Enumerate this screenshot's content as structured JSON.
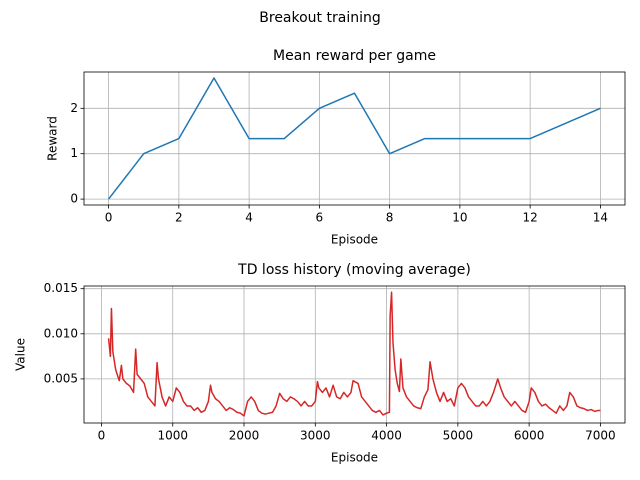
{
  "title": "Breakout training",
  "chart_data": [
    {
      "type": "line",
      "title": "Mean reward per game",
      "xlabel": "Episode",
      "ylabel": "Reward",
      "color": "#1f77b4",
      "grid": true,
      "x": [
        0,
        1,
        2,
        3,
        4,
        5,
        6,
        7,
        8,
        9,
        10,
        11,
        12,
        13,
        14
      ],
      "values": [
        0,
        1,
        1.333,
        2.667,
        1.333,
        1.333,
        2,
        2.333,
        1,
        1.333,
        1.333,
        1.333,
        1.333,
        1.667,
        2
      ],
      "xlim": [
        -0.7,
        14.7
      ],
      "xticks": [
        0,
        2,
        4,
        6,
        8,
        10,
        12,
        14
      ],
      "ylim": [
        -0.13,
        2.8
      ],
      "yticks": [
        0,
        1,
        2
      ]
    },
    {
      "type": "line",
      "title": "TD loss history (moving average)",
      "xlabel": "Episode",
      "ylabel": "Value",
      "color": "#d62728",
      "grid": true,
      "x": [
        100,
        125,
        140,
        160,
        200,
        250,
        280,
        300,
        350,
        400,
        450,
        480,
        500,
        550,
        600,
        650,
        700,
        750,
        780,
        800,
        850,
        900,
        950,
        1000,
        1050,
        1100,
        1150,
        1200,
        1250,
        1300,
        1350,
        1400,
        1450,
        1500,
        1530,
        1550,
        1600,
        1650,
        1700,
        1750,
        1800,
        1850,
        1900,
        1950,
        2000,
        2050,
        2100,
        2150,
        2200,
        2250,
        2300,
        2350,
        2400,
        2450,
        2500,
        2550,
        2600,
        2650,
        2700,
        2750,
        2800,
        2850,
        2900,
        2950,
        3000,
        3030,
        3050,
        3100,
        3150,
        3200,
        3250,
        3300,
        3350,
        3400,
        3450,
        3500,
        3530,
        3600,
        3650,
        3700,
        3750,
        3800,
        3850,
        3900,
        3950,
        4000,
        4040,
        4050,
        4070,
        4090,
        4120,
        4150,
        4180,
        4200,
        4230,
        4280,
        4330,
        4380,
        4430,
        4480,
        4530,
        4580,
        4610,
        4650,
        4700,
        4750,
        4800,
        4850,
        4900,
        4950,
        5000,
        5050,
        5100,
        5150,
        5200,
        5250,
        5300,
        5350,
        5400,
        5450,
        5500,
        5560,
        5600,
        5650,
        5700,
        5750,
        5800,
        5850,
        5900,
        5950,
        6000,
        6030,
        6080,
        6130,
        6180,
        6230,
        6280,
        6330,
        6380,
        6430,
        6480,
        6530,
        6570,
        6620,
        6670,
        6720,
        6770,
        6820,
        6870,
        6920,
        6970,
        7000
      ],
      "values": [
        0.0095,
        0.0075,
        0.0128,
        0.008,
        0.006,
        0.0048,
        0.0065,
        0.005,
        0.0045,
        0.0042,
        0.0035,
        0.0083,
        0.0055,
        0.005,
        0.0045,
        0.003,
        0.0025,
        0.002,
        0.0068,
        0.005,
        0.003,
        0.002,
        0.003,
        0.0025,
        0.004,
        0.0035,
        0.0025,
        0.002,
        0.002,
        0.0015,
        0.0018,
        0.0013,
        0.0015,
        0.0025,
        0.0043,
        0.0035,
        0.0028,
        0.0025,
        0.002,
        0.0015,
        0.0018,
        0.0016,
        0.0013,
        0.0012,
        0.0009,
        0.0025,
        0.003,
        0.0025,
        0.0015,
        0.0012,
        0.0011,
        0.0012,
        0.0013,
        0.002,
        0.0034,
        0.0028,
        0.0025,
        0.003,
        0.0028,
        0.0025,
        0.002,
        0.0025,
        0.002,
        0.002,
        0.0025,
        0.0047,
        0.004,
        0.0035,
        0.004,
        0.003,
        0.0043,
        0.003,
        0.0028,
        0.0035,
        0.003,
        0.0035,
        0.0048,
        0.0045,
        0.003,
        0.0025,
        0.002,
        0.0015,
        0.0013,
        0.0015,
        0.001,
        0.0012,
        0.0013,
        0.012,
        0.0146,
        0.009,
        0.006,
        0.0045,
        0.0036,
        0.0072,
        0.004,
        0.003,
        0.0025,
        0.002,
        0.0018,
        0.0017,
        0.003,
        0.0038,
        0.0069,
        0.005,
        0.0035,
        0.0025,
        0.0035,
        0.0025,
        0.0028,
        0.002,
        0.004,
        0.0045,
        0.004,
        0.003,
        0.0025,
        0.002,
        0.002,
        0.0025,
        0.002,
        0.0025,
        0.0035,
        0.005,
        0.004,
        0.003,
        0.0025,
        0.002,
        0.0025,
        0.002,
        0.0015,
        0.0013,
        0.0025,
        0.004,
        0.0035,
        0.0025,
        0.002,
        0.0022,
        0.0018,
        0.0015,
        0.0012,
        0.002,
        0.0015,
        0.002,
        0.0035,
        0.003,
        0.002,
        0.0018,
        0.0017,
        0.0015,
        0.0016,
        0.0014,
        0.0015,
        0.0015
      ],
      "xlim": [
        -245,
        7345
      ],
      "xticks": [
        0,
        1000,
        2000,
        3000,
        4000,
        5000,
        6000,
        7000
      ],
      "ylim": [
        0.00011,
        0.0153
      ],
      "yticks": [
        0.005,
        {
          "value": 0.01,
          "label": "0.010"
        },
        0.015
      ]
    }
  ]
}
